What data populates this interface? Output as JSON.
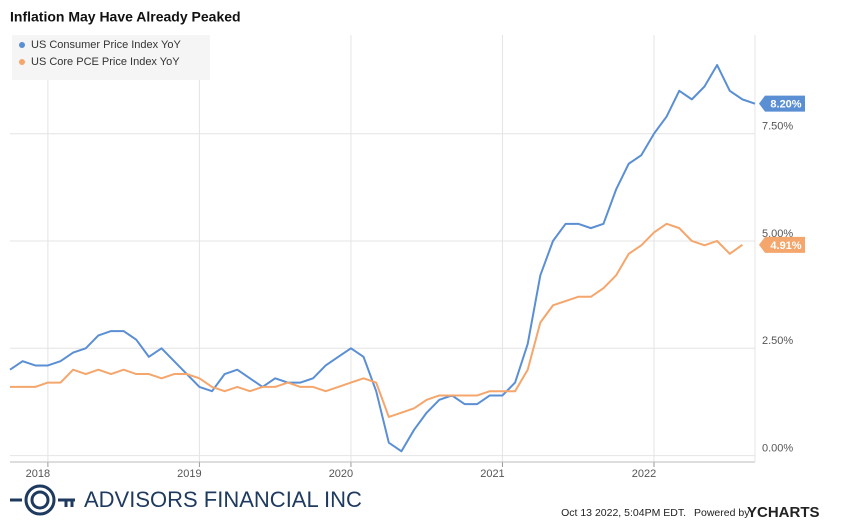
{
  "chart_data": {
    "type": "line",
    "title": "Inflation May Have Already Peaked",
    "categories": [
      null,
      null,
      null,
      "2018",
      null,
      null,
      null,
      null,
      null,
      null,
      null,
      null,
      null,
      null,
      null,
      "2019",
      null,
      null,
      null,
      null,
      null,
      null,
      null,
      null,
      null,
      null,
      null,
      "2020",
      null,
      null,
      null,
      null,
      null,
      null,
      null,
      null,
      null,
      null,
      null,
      "2021",
      null,
      null,
      null,
      null,
      null,
      null,
      null,
      null,
      null,
      null,
      null,
      "2022",
      null,
      null,
      null,
      null,
      null,
      null,
      null,
      null
    ],
    "series": [
      {
        "name": "US Consumer Price Index YoY",
        "color": "#5b8fd4",
        "values": [
          2.0,
          2.2,
          2.1,
          2.1,
          2.2,
          2.4,
          2.5,
          2.8,
          2.9,
          2.9,
          2.7,
          2.3,
          2.5,
          2.2,
          1.9,
          1.6,
          1.5,
          1.9,
          2.0,
          1.8,
          1.6,
          1.8,
          1.7,
          1.7,
          1.8,
          2.1,
          2.3,
          2.5,
          2.3,
          1.5,
          0.3,
          0.1,
          0.6,
          1.0,
          1.3,
          1.4,
          1.2,
          1.2,
          1.4,
          1.4,
          1.7,
          2.6,
          4.2,
          5.0,
          5.4,
          5.4,
          5.3,
          5.4,
          6.2,
          6.8,
          7.0,
          7.5,
          7.9,
          8.5,
          8.3,
          8.6,
          9.1,
          8.5,
          8.3,
          8.2
        ],
        "value_labels": [
          null,
          null,
          null,
          null,
          null,
          null,
          null,
          null,
          null,
          null,
          null,
          null,
          null,
          null,
          null,
          null,
          null,
          null,
          null,
          null,
          null,
          null,
          null,
          null,
          null,
          null,
          null,
          null,
          null,
          null,
          null,
          null,
          null,
          null,
          null,
          null,
          null,
          null,
          null,
          null,
          null,
          null,
          null,
          null,
          null,
          null,
          null,
          null,
          null,
          null,
          null,
          null,
          null,
          null,
          null,
          null,
          null,
          null,
          null,
          "8.20%"
        ]
      },
      {
        "name": "US Core PCE Price Index YoY",
        "color": "#f5a66c",
        "values": [
          1.6,
          1.6,
          1.6,
          1.7,
          1.7,
          2.0,
          1.9,
          2.0,
          1.9,
          2.0,
          1.9,
          1.9,
          1.8,
          1.9,
          1.9,
          1.8,
          1.6,
          1.5,
          1.6,
          1.5,
          1.6,
          1.6,
          1.7,
          1.6,
          1.6,
          1.5,
          1.6,
          1.7,
          1.8,
          1.7,
          0.9,
          1.0,
          1.1,
          1.3,
          1.4,
          1.4,
          1.4,
          1.4,
          1.5,
          1.5,
          1.5,
          2.0,
          3.1,
          3.5,
          3.6,
          3.7,
          3.7,
          3.9,
          4.2,
          4.7,
          4.9,
          5.2,
          5.4,
          5.3,
          5.0,
          4.9,
          5.0,
          4.7,
          4.91,
          null
        ],
        "value_labels": [
          null,
          null,
          null,
          null,
          null,
          null,
          null,
          null,
          null,
          null,
          null,
          null,
          null,
          null,
          null,
          null,
          null,
          null,
          null,
          null,
          null,
          null,
          null,
          null,
          null,
          null,
          null,
          null,
          null,
          null,
          null,
          null,
          null,
          null,
          null,
          null,
          null,
          null,
          null,
          null,
          null,
          null,
          null,
          null,
          null,
          null,
          null,
          null,
          null,
          null,
          null,
          null,
          null,
          null,
          null,
          null,
          null,
          null,
          "4.91%",
          null
        ]
      }
    ],
    "ylim": [
      -0.15,
      9.8
    ],
    "yticks": [
      {
        "value": 0,
        "label": "0.00%"
      },
      {
        "value": 2.5,
        "label": "2.50%"
      },
      {
        "value": 5,
        "label": "5.00%"
      },
      {
        "value": 7.5,
        "label": "7.50%"
      }
    ],
    "grid": true,
    "legend": "top-left"
  },
  "footer": {
    "brand": "ADVISORS FINANCIAL INC",
    "timestamp": "Oct 13 2022, 5:04PM EDT.",
    "powered": "Powered by",
    "provider": "YCHARTS"
  }
}
